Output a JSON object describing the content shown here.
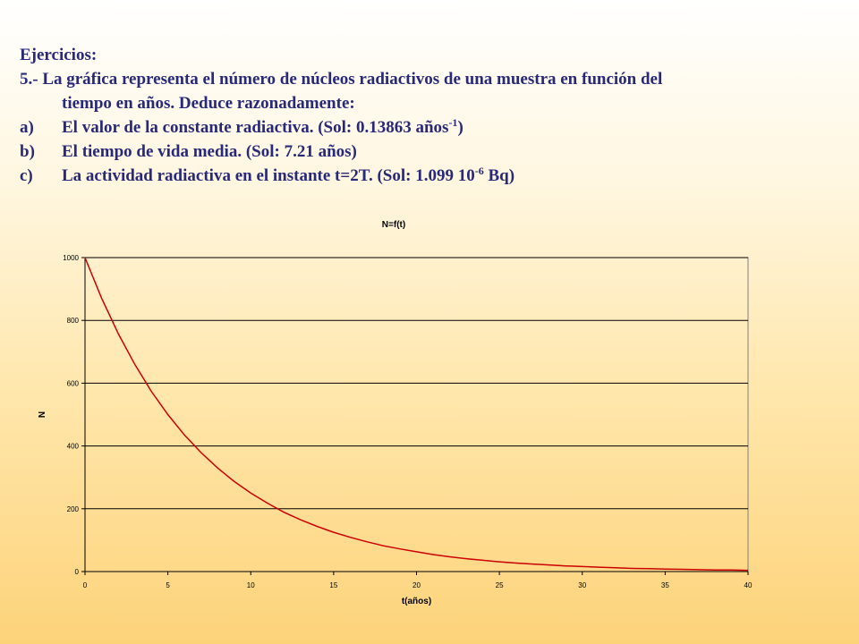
{
  "content": {
    "heading": "Ejercicios:",
    "intro_line1": "5.- La gráfica representa el número de núcleos radiactivos de una muestra en función del",
    "intro_line2": "tiempo en años. Deduce razonadamente:",
    "items": [
      {
        "label": "a)",
        "text": "El valor de la constante radiactiva. (Sol: 0.13863 años",
        "sup": "-1",
        "tail": ")"
      },
      {
        "label": "b)",
        "text": "El tiempo de vida media. (Sol: 7.21 años)",
        "sup": "",
        "tail": ""
      },
      {
        "label": "c)",
        "text": "La actividad radiactiva en el instante t=2T. (Sol: 1.099 10",
        "sup": "-6",
        "tail": " Bq)"
      }
    ]
  },
  "colors": {
    "text": "#29297a",
    "curve": "#cc0000",
    "grid": "#000000"
  },
  "chart_data": {
    "type": "line",
    "title": "N=f(t)",
    "xlabel": "t(años)",
    "ylabel": "N",
    "xlim": [
      0,
      40
    ],
    "ylim": [
      0,
      1000
    ],
    "xticks": [
      0,
      5,
      10,
      15,
      20,
      25,
      30,
      35,
      40
    ],
    "yticks": [
      0,
      200,
      400,
      600,
      800,
      1000
    ],
    "grid": "horizontal",
    "legend": "none",
    "series": [
      {
        "x": [
          0,
          1,
          2,
          3,
          4,
          5,
          6,
          7,
          8,
          9,
          10,
          11,
          12,
          13,
          14,
          15,
          16,
          17,
          18,
          19,
          20,
          21,
          22,
          23,
          24,
          25,
          26,
          27,
          28,
          29,
          30,
          31,
          32,
          33,
          34,
          35,
          36,
          37,
          38,
          39,
          40
        ],
        "values": [
          1000,
          871,
          758,
          660,
          574,
          500,
          435,
          379,
          330,
          287,
          250,
          218,
          189,
          165,
          144,
          125,
          109,
          95,
          82,
          72,
          63,
          54,
          47,
          41,
          36,
          31,
          27,
          24,
          21,
          18,
          16,
          14,
          12,
          10,
          9,
          8,
          7,
          6,
          5,
          5,
          4
        ]
      }
    ]
  }
}
